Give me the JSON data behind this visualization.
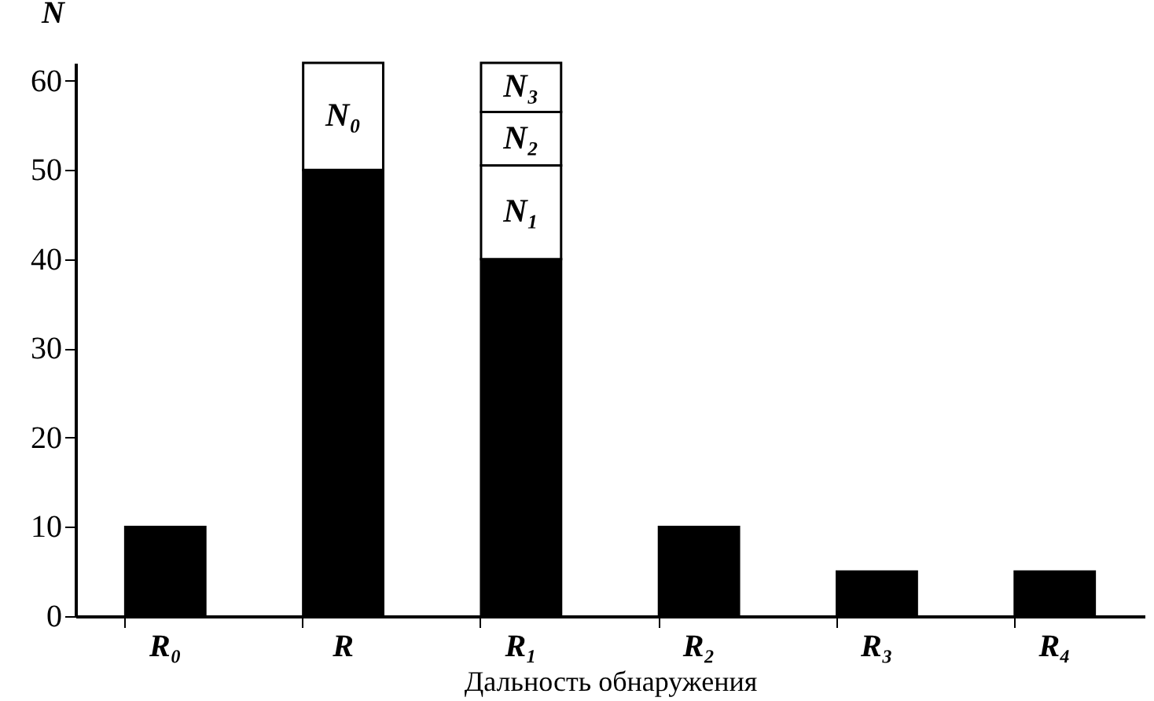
{
  "chart_data": {
    "type": "bar",
    "stacked": true,
    "xlabel": "Дальность обнаружения",
    "ylabel": "N",
    "categories": [
      "R₀",
      "R",
      "R₁",
      "R₂",
      "R₃",
      "R₄"
    ],
    "series": [
      {
        "color": "#000000",
        "values": [
          10,
          50,
          40,
          10,
          5,
          5
        ]
      },
      {
        "name": "N₀",
        "color": "#ffffff",
        "values": [
          null,
          12,
          null,
          null,
          null,
          null
        ]
      },
      {
        "name": "N₁",
        "color": "#ffffff",
        "values": [
          null,
          null,
          10.5,
          null,
          null,
          null
        ]
      },
      {
        "name": "N₂",
        "color": "#ffffff",
        "values": [
          null,
          null,
          6,
          null,
          null,
          null
        ]
      },
      {
        "name": "N₃",
        "color": "#ffffff",
        "values": [
          null,
          null,
          5.5,
          null,
          null,
          null
        ]
      }
    ],
    "ylim": [
      0,
      62
    ],
    "yticks": [
      0,
      10,
      20,
      30,
      40,
      50,
      60
    ]
  }
}
